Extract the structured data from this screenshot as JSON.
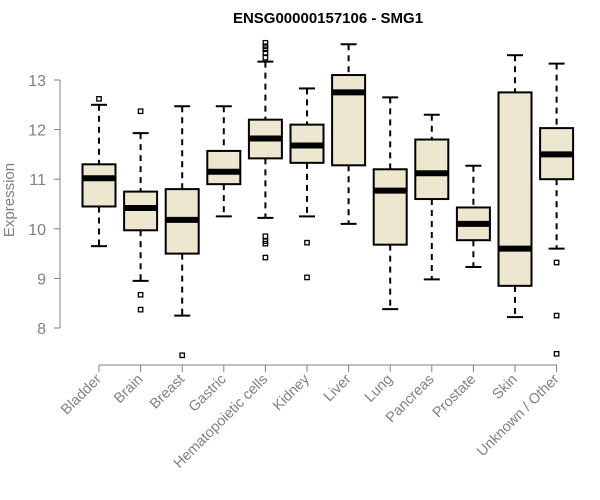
{
  "chart_data": {
    "type": "box",
    "title": "ENSG00000157106 - SMG1",
    "xlabel": "",
    "ylabel": "Expression",
    "ylim": [
      7.4,
      13.7
    ],
    "yticks": [
      8,
      9,
      10,
      11,
      12,
      13
    ],
    "grid": false,
    "categories": [
      "Bladder",
      "Brain",
      "Breast",
      "Gastric",
      "Hematopoietic cells",
      "Kidney",
      "Liver",
      "Lung",
      "Pancreas",
      "Prostate",
      "Skin",
      "Unknown / Other"
    ],
    "series": [
      {
        "name": "Bladder",
        "min": 9.65,
        "q1": 10.45,
        "median": 11.02,
        "q3": 11.3,
        "max": 12.5,
        "outliers": [
          12.62
        ]
      },
      {
        "name": "Brain",
        "min": 8.95,
        "q1": 9.97,
        "median": 10.42,
        "q3": 10.75,
        "max": 11.93,
        "outliers": [
          12.37,
          8.67,
          8.37
        ]
      },
      {
        "name": "Breast",
        "min": 8.25,
        "q1": 9.5,
        "median": 10.18,
        "q3": 10.8,
        "max": 12.47,
        "outliers": [
          7.45
        ]
      },
      {
        "name": "Gastric",
        "min": 10.25,
        "q1": 10.9,
        "median": 11.15,
        "q3": 11.57,
        "max": 12.47,
        "outliers": []
      },
      {
        "name": "Hematopoietic cells",
        "min": 10.22,
        "q1": 11.42,
        "median": 11.82,
        "q3": 12.2,
        "max": 13.37,
        "outliers": [
          13.45,
          13.55,
          13.62,
          13.68,
          13.75,
          9.85,
          9.75,
          9.7,
          9.42
        ]
      },
      {
        "name": "Kidney",
        "min": 10.25,
        "q1": 11.33,
        "median": 11.68,
        "q3": 12.1,
        "max": 12.83,
        "outliers": [
          9.72,
          9.02
        ]
      },
      {
        "name": "Liver",
        "min": 10.1,
        "q1": 11.28,
        "median": 12.75,
        "q3": 13.1,
        "max": 13.72,
        "outliers": []
      },
      {
        "name": "Lung",
        "min": 8.38,
        "q1": 9.68,
        "median": 10.77,
        "q3": 11.2,
        "max": 12.65,
        "outliers": []
      },
      {
        "name": "Pancreas",
        "min": 8.98,
        "q1": 10.6,
        "median": 11.12,
        "q3": 11.8,
        "max": 12.3,
        "outliers": []
      },
      {
        "name": "Prostate",
        "min": 9.23,
        "q1": 9.77,
        "median": 10.1,
        "q3": 10.43,
        "max": 11.27,
        "outliers": []
      },
      {
        "name": "Skin",
        "min": 8.22,
        "q1": 8.85,
        "median": 9.6,
        "q3": 12.75,
        "max": 13.5,
        "outliers": []
      },
      {
        "name": "Unknown / Other",
        "min": 9.6,
        "q1": 11.0,
        "median": 11.5,
        "q3": 12.03,
        "max": 13.33,
        "outliers": [
          9.32,
          8.25,
          7.48
        ]
      }
    ]
  }
}
